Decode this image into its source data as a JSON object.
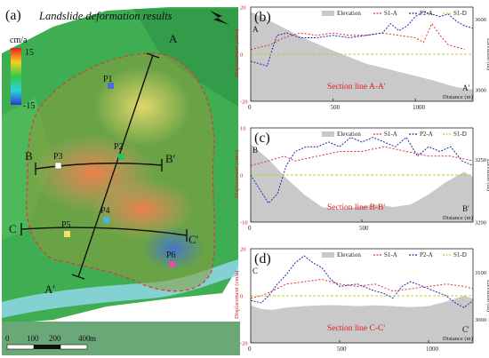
{
  "figure": {
    "map": {
      "panel_label": "(a)",
      "title": "Landslide deformation results",
      "colorbar_unit": "cm/a",
      "colorbar_max": "15",
      "colorbar_min": "-15",
      "points": [
        "P1",
        "P2",
        "P3",
        "P4",
        "P5",
        "P6"
      ],
      "point_colors": [
        "#4b6fd6",
        "#22c55e",
        "#ffffff",
        "#3fb8e8",
        "#f2e36a",
        "#e050a8"
      ],
      "section_labels": {
        "A": "A",
        "A_prime": "A'",
        "B": "B",
        "B_prime": "B'",
        "C": "C",
        "C_prime": "C'"
      },
      "scale_ticks": [
        "0",
        "100",
        "200",
        "400"
      ],
      "scale_unit": "m"
    }
  },
  "chart_data": [
    {
      "type": "line",
      "panel_label": "(b)",
      "section": "Section line A-A'",
      "start_label": "A",
      "end_label": "A'",
      "legend": [
        "Elevation",
        "S1-A",
        "P2-A",
        "S1-D"
      ],
      "xlabel": "Distance (m)",
      "ylabel_left": "Displacement (cm/a)",
      "ylabel_right": "Elevation (m)",
      "xlim": [
        0,
        1350
      ],
      "xticks": [
        "0",
        "500",
        "1000"
      ],
      "ylim_left": [
        -20,
        20
      ],
      "yticks_left": [
        "-20",
        "0",
        "20"
      ],
      "ylim_right": [
        2900,
        3700
      ],
      "yticks_right": [
        "3000",
        "3600"
      ],
      "elevation": {
        "x": [
          0,
          150,
          300,
          500,
          700,
          900,
          1100,
          1250,
          1350
        ],
        "y": [
          3660,
          3560,
          3450,
          3330,
          3220,
          3150,
          3080,
          3020,
          3000
        ]
      },
      "series": [
        {
          "name": "S1-A",
          "color": "#e32d2d",
          "x": [
            0,
            60,
            120,
            200,
            300,
            400,
            500,
            600,
            700,
            800,
            900,
            1000,
            1050,
            1100,
            1150,
            1200,
            1300
          ],
          "y": [
            2,
            3,
            4,
            7,
            9,
            8,
            9,
            8,
            8,
            9,
            8,
            7,
            5,
            13,
            8,
            4,
            2
          ]
        },
        {
          "name": "P2-A",
          "color": "#1a2fb0",
          "x": [
            0,
            50,
            100,
            130,
            160,
            220,
            300,
            400,
            500,
            600,
            700,
            800,
            850,
            900,
            950,
            1000,
            1050,
            1100,
            1150,
            1200,
            1250,
            1300,
            1350
          ],
          "y": [
            -3,
            -4,
            -5,
            2,
            8,
            9,
            7,
            7,
            8,
            7,
            8,
            9,
            13,
            10,
            12,
            16,
            18,
            17,
            16,
            17,
            14,
            12,
            11
          ]
        },
        {
          "name": "S1-D",
          "color": "#c8c830",
          "x": [
            0,
            1350
          ],
          "y": [
            0,
            0
          ]
        }
      ]
    },
    {
      "type": "line",
      "panel_label": "(c)",
      "section": "Section line B-B'",
      "start_label": "B",
      "end_label": "B'",
      "legend": [
        "Elevation",
        "S1-A",
        "P2-A",
        "S1-D"
      ],
      "xlabel": "Distance (m)",
      "ylabel_left": "Displacement (cm/a)",
      "ylabel_right": "Elevation (m)",
      "xlim": [
        0,
        1000
      ],
      "xticks": [
        "0",
        "500"
      ],
      "ylim_left": [
        -10,
        10
      ],
      "yticks_left": [
        "-10",
        "0",
        "10"
      ],
      "ylim_right": [
        3200,
        3275
      ],
      "yticks_right": [
        "3200",
        "3250"
      ],
      "elevation": {
        "x": [
          0,
          80,
          160,
          240,
          320,
          400,
          480,
          560,
          640,
          720,
          800,
          880,
          960,
          1000
        ],
        "y": [
          3262,
          3250,
          3235,
          3222,
          3212,
          3210,
          3212,
          3214,
          3212,
          3214,
          3222,
          3232,
          3240,
          3236
        ]
      },
      "series": [
        {
          "name": "S1-A",
          "color": "#e32d2d",
          "x": [
            0,
            80,
            150,
            200,
            300,
            400,
            500,
            600,
            700,
            800,
            900,
            1000
          ],
          "y": [
            2,
            3,
            4,
            3,
            4,
            5,
            5,
            6,
            5,
            4,
            4,
            3
          ]
        },
        {
          "name": "P2-A",
          "color": "#1a2fb0",
          "x": [
            0,
            40,
            80,
            120,
            160,
            200,
            250,
            300,
            350,
            400,
            450,
            500,
            550,
            600,
            650,
            700,
            750,
            800,
            850,
            900,
            950,
            1000
          ],
          "y": [
            0,
            -3,
            -6,
            -4,
            2,
            5,
            6,
            6,
            7,
            6,
            8,
            7,
            8,
            7,
            6,
            8,
            4,
            6,
            5,
            6,
            3,
            2
          ]
        },
        {
          "name": "S1-D",
          "color": "#c8c830",
          "x": [
            0,
            1000
          ],
          "y": [
            0,
            0
          ]
        }
      ]
    },
    {
      "type": "line",
      "panel_label": "(d)",
      "section": "Section line C-C'",
      "start_label": "C",
      "end_label": "C'",
      "legend": [
        "Elevation",
        "S1-A",
        "P2-A",
        "S1-D"
      ],
      "xlabel": "Distance (m)",
      "ylabel_left": "Displacement (cm/a)",
      "ylabel_right": "Elevation (m)",
      "xlim": [
        0,
        1250
      ],
      "xticks": [
        "0",
        "500",
        "1000"
      ],
      "ylim_left": [
        -20,
        20
      ],
      "yticks_left": [
        "-20",
        "0",
        "20"
      ],
      "ylim_right": [
        2950,
        3150
      ],
      "yticks_right": [
        "3000",
        "3100"
      ],
      "elevation": {
        "x": [
          0,
          60,
          120,
          200,
          300,
          400,
          500,
          600,
          700,
          800,
          900,
          1000,
          1100,
          1200,
          1250
        ],
        "y": [
          3030,
          3022,
          3020,
          3025,
          3028,
          3030,
          3030,
          3028,
          3030,
          3028,
          3026,
          3028,
          3038,
          3050,
          3044
        ]
      },
      "series": [
        {
          "name": "S1-A",
          "color": "#e32d2d",
          "x": [
            0,
            60,
            120,
            200,
            300,
            400,
            500,
            600,
            700,
            800,
            900,
            1000,
            1100,
            1200,
            1250
          ],
          "y": [
            -1,
            0,
            2,
            5,
            6,
            7,
            5,
            4,
            5,
            2,
            3,
            4,
            5,
            4,
            3
          ]
        },
        {
          "name": "P2-A",
          "color": "#1a2fb0",
          "x": [
            0,
            60,
            100,
            150,
            200,
            250,
            300,
            350,
            400,
            450,
            500,
            600,
            700,
            750,
            800,
            850,
            900,
            1000,
            1100,
            1150,
            1200,
            1250
          ],
          "y": [
            -2,
            -3,
            0,
            5,
            9,
            14,
            17,
            14,
            12,
            7,
            4,
            5,
            2,
            1,
            -1,
            4,
            6,
            3,
            0,
            -3,
            -5,
            -2
          ]
        },
        {
          "name": "S1-D",
          "color": "#c8c830",
          "x": [
            0,
            1250
          ],
          "y": [
            0,
            0
          ]
        }
      ]
    }
  ]
}
